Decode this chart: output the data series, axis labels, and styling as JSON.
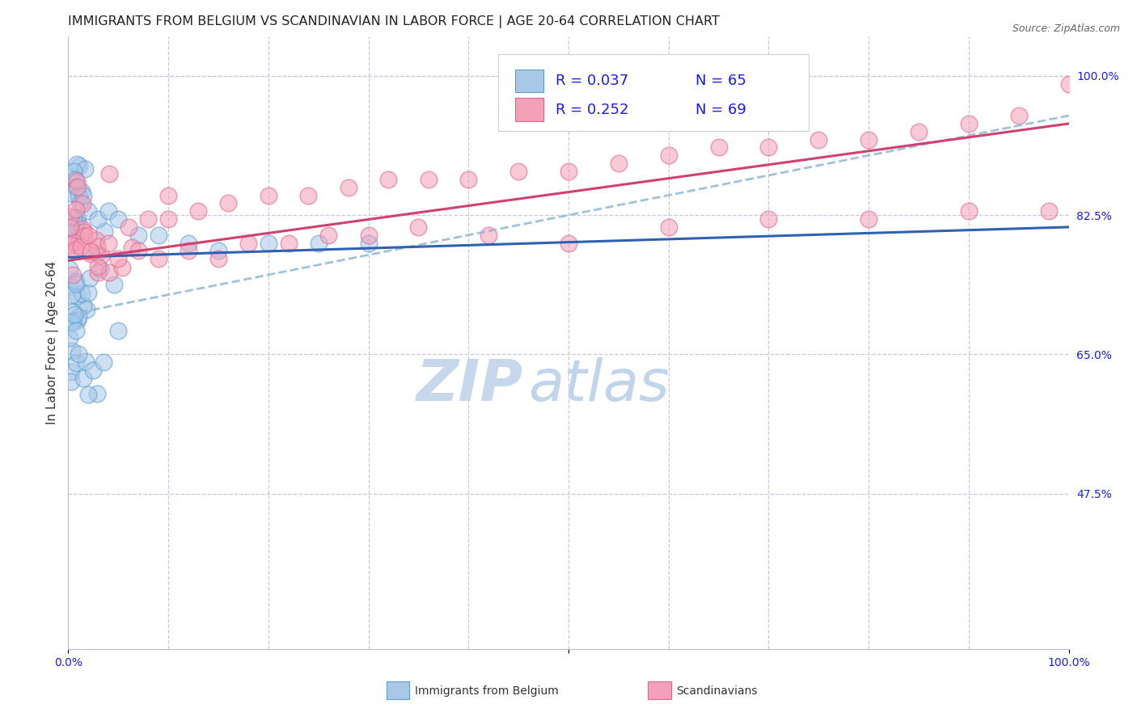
{
  "title": "IMMIGRANTS FROM BELGIUM VS SCANDINAVIAN IN LABOR FORCE | AGE 20-64 CORRELATION CHART",
  "source": "Source: ZipAtlas.com",
  "ylabel": "In Labor Force | Age 20-64",
  "xlim": [
    0.0,
    1.0
  ],
  "ylim": [
    0.28,
    1.05
  ],
  "yticks_right": [
    0.475,
    0.65,
    0.825,
    1.0
  ],
  "yticklabels_right": [
    "47.5%",
    "65.0%",
    "82.5%",
    "100.0%"
  ],
  "legend_R_blue": "R = 0.037",
  "legend_N_blue": "N = 65",
  "legend_R_pink": "R = 0.252",
  "legend_N_pink": "N = 69",
  "blue_fill": "#a8c8e8",
  "blue_edge": "#5a9fd4",
  "pink_fill": "#f4a0b8",
  "pink_edge": "#e06890",
  "blue_line_color": "#3060b0",
  "pink_line_color": "#d04070",
  "dashed_line_color": "#90b8d8",
  "watermark_zip": "ZIP",
  "watermark_atlas": "atlas",
  "grid_color": "#c8c8e0",
  "background_color": "#ffffff",
  "title_fontsize": 11.5,
  "axis_label_fontsize": 11,
  "tick_fontsize": 10,
  "legend_fontsize": 13,
  "watermark_fontsize": 52,
  "blue_trend_x": [
    0.0,
    1.0
  ],
  "blue_trend_y": [
    0.772,
    0.81
  ],
  "pink_trend_x": [
    0.0,
    1.0
  ],
  "pink_trend_y": [
    0.768,
    0.94
  ],
  "dashed_trend_x": [
    0.0,
    1.0
  ],
  "dashed_trend_y": [
    0.7,
    0.95
  ],
  "bottom_legend_blue": "Immigrants from Belgium",
  "bottom_legend_pink": "Scandinavians"
}
